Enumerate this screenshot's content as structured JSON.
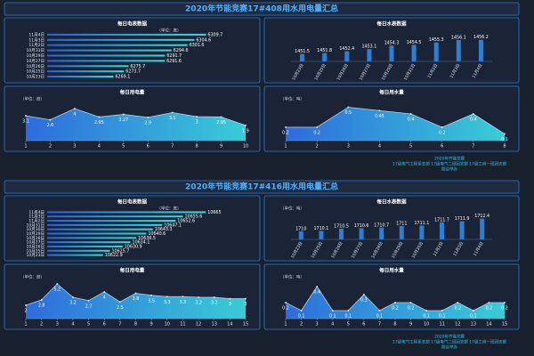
{
  "dashboards": [
    {
      "title": "2020年节能竞赛17#408用水用电量汇总",
      "footer": [
        "2020年节能竞赛",
        "17级电气工程系支部  17级电气二班团支部  17级工商一班团支部",
        "联合举办"
      ],
      "charts": [
        {
          "type": "hbar",
          "title": "每日电表数据",
          "unit": "（单位：度）",
          "categories": [
            "11月4日",
            "11月3日",
            "11月2日",
            "10月31日",
            "10月29日",
            "10月27日",
            "10月26日",
            "10月25日",
            "10月23日"
          ],
          "values": [
            6309.7,
            6304.6,
            6301.6,
            6294.6,
            6291.7,
            6291.6,
            6275.7,
            6273.7,
            6269.1
          ],
          "xlim": [
            6240,
            6315
          ]
        },
        {
          "type": "vbar",
          "title": "每日水表数据",
          "categories": [
            "10月23日",
            "10月25日",
            "10月26日",
            "10月27日",
            "10月29日",
            "10月31日",
            "11月2日",
            "11月3日",
            "11月4日"
          ],
          "values": [
            1451.5,
            1451.8,
            1452.4,
            1453.1,
            1454.3,
            1454.5,
            1455.3,
            1456.1,
            1456.2
          ],
          "ylim": [
            1449,
            1457
          ]
        },
        {
          "type": "area",
          "title": "每日用电量",
          "unit": "（单位：度）",
          "x": [
            1,
            2,
            3,
            4,
            5,
            6,
            7,
            8,
            9,
            10
          ],
          "xticks": [
            1,
            2,
            3,
            4,
            5,
            6,
            7,
            8,
            9,
            10
          ],
          "values": [
            3.1,
            2.6,
            4,
            2.95,
            3.27,
            2.9,
            3.5,
            3,
            2.95,
            1.9
          ],
          "ylim": [
            0,
            5
          ]
        },
        {
          "type": "area",
          "title": "每日用水量",
          "unit": "（单位：吨）",
          "x": [
            1,
            2,
            3,
            4,
            5,
            6,
            7,
            8
          ],
          "xticks": [
            1,
            2,
            3,
            4,
            5,
            6,
            7,
            8
          ],
          "values": [
            0.2,
            0.2,
            0.5,
            0.45,
            0.4,
            0.2,
            0.4,
            0.1
          ],
          "ylim": [
            0,
            0.6
          ]
        }
      ]
    },
    {
      "title": "2020年节能竞赛17#416用水用电量汇总",
      "footer": [
        "2020年节能竞赛",
        "17级电气工程系支部  17级电气二班团支部  17级工商一班团支部",
        "联合举办"
      ],
      "charts": [
        {
          "type": "hbar",
          "title": "每日电表数据",
          "unit": "（单位：度）",
          "categories": [
            "11月4日",
            "11月3日",
            "11月2日",
            "10月31日",
            "10月30日",
            "10月29日",
            "10月28日",
            "10月27日",
            "10月26日",
            "10月25日",
            "10月23日"
          ],
          "values": [
            10665,
            10655.6,
            10652.6,
            10647.1,
            10643.3,
            10640.6,
            10636.5,
            10634.1,
            10630.9,
            10625.7,
            10622.9
          ],
          "xlim": [
            10600,
            10670
          ]
        },
        {
          "type": "vbar",
          "title": "每日水表数据",
          "unit": "（单位：吨）",
          "categories": [
            "10月23日",
            "10月25日",
            "10月26日",
            "10月27日",
            "10月28日",
            "10月29日",
            "10月30日",
            "11月2日",
            "11月3日",
            "11月4日"
          ],
          "values": [
            1710,
            1710.1,
            1710.5,
            1710.6,
            1710.7,
            1711,
            1711.1,
            1711.7,
            1711.9,
            1712.4
          ],
          "ylim": [
            1708.5,
            1713
          ]
        },
        {
          "type": "area",
          "title": "每日用电量",
          "unit": "（单位：度）",
          "x": [
            1,
            2,
            3,
            4,
            5,
            6,
            7,
            8,
            9,
            10,
            11,
            12,
            13,
            14,
            15
          ],
          "xticks": [
            1,
            2,
            3,
            4,
            5,
            6,
            7,
            8,
            9,
            10,
            11,
            12,
            13,
            14,
            15
          ],
          "values": [
            2,
            2.8,
            5.2,
            3.2,
            2.7,
            4,
            2.5,
            3.8,
            3.5,
            3.3,
            3.3,
            3.2,
            3.2,
            3,
            3
          ],
          "ylim": [
            0,
            6
          ]
        },
        {
          "type": "area",
          "title": "每日用水量",
          "unit": "（单位：吨）",
          "x": [
            1,
            2,
            3,
            4,
            5,
            6,
            7,
            8,
            9,
            10,
            11,
            12,
            13,
            14,
            15
          ],
          "xticks": [
            1,
            2,
            3,
            4,
            5,
            6,
            7,
            8,
            9,
            10,
            11,
            12,
            13,
            14,
            15
          ],
          "values": [
            0.2,
            0.1,
            0.4,
            0.1,
            0.1,
            0.3,
            0.1,
            0.2,
            0.2,
            0.1,
            0.1,
            0.2,
            0.1,
            0.2,
            0.2
          ],
          "ylim": [
            0,
            0.5
          ]
        }
      ]
    }
  ]
}
